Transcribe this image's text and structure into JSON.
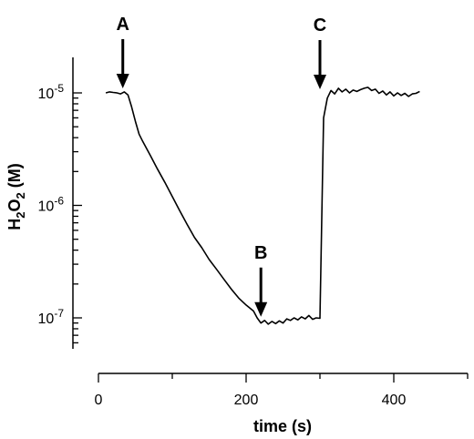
{
  "chart_data": {
    "type": "line",
    "xlabel": "time (s)",
    "ylabel": {
      "base": "H",
      "sub1": "2",
      "mid": "O",
      "sub2": "2",
      "unit": " (M)"
    },
    "xlim": [
      0,
      500
    ],
    "ylim": [
      5e-08,
      1.5e-05
    ],
    "yscale": "log",
    "x_ticks": [
      {
        "value": 0,
        "label": "0"
      },
      {
        "value": 200,
        "label": "200"
      },
      {
        "value": 400,
        "label": "400"
      }
    ],
    "y_ticks": [
      {
        "value": 1e-07,
        "base": "10",
        "exp": "-7"
      },
      {
        "value": 1e-06,
        "base": "10",
        "exp": "-6"
      },
      {
        "value": 1e-05,
        "base": "10",
        "exp": "-5"
      }
    ],
    "series": [
      {
        "color": "#000000",
        "points": [
          [
            10,
            1e-05
          ],
          [
            15,
            1.02e-05
          ],
          [
            20,
            1.01e-05
          ],
          [
            25,
            1e-05
          ],
          [
            30,
            9.8e-06
          ],
          [
            35,
            1.02e-05
          ],
          [
            40,
            9.6e-06
          ],
          [
            45,
            7.5e-06
          ],
          [
            50,
            5.6e-06
          ],
          [
            55,
            4.3e-06
          ],
          [
            60,
            3.7e-06
          ],
          [
            70,
            2.8e-06
          ],
          [
            80,
            2.1e-06
          ],
          [
            90,
            1.6e-06
          ],
          [
            100,
            1.2e-06
          ],
          [
            110,
            9e-07
          ],
          [
            120,
            6.8e-07
          ],
          [
            130,
            5.2e-07
          ],
          [
            140,
            4.2e-07
          ],
          [
            150,
            3.3e-07
          ],
          [
            160,
            2.7e-07
          ],
          [
            170,
            2.2e-07
          ],
          [
            180,
            1.8e-07
          ],
          [
            190,
            1.5e-07
          ],
          [
            200,
            1.3e-07
          ],
          [
            210,
            1.15e-07
          ],
          [
            215,
            1e-07
          ],
          [
            220,
            9e-08
          ],
          [
            225,
            9.5e-08
          ],
          [
            230,
            8.8e-08
          ],
          [
            235,
            9.3e-08
          ],
          [
            240,
            8.9e-08
          ],
          [
            245,
            9.4e-08
          ],
          [
            250,
            9e-08
          ],
          [
            255,
            9.8e-08
          ],
          [
            260,
            9.5e-08
          ],
          [
            265,
            1e-07
          ],
          [
            270,
            9.6e-08
          ],
          [
            275,
            1.02e-07
          ],
          [
            280,
            9.8e-08
          ],
          [
            285,
            1.05e-07
          ],
          [
            290,
            9.7e-08
          ],
          [
            295,
            1e-07
          ],
          [
            300,
            9.9e-08
          ],
          [
            305,
            6e-06
          ],
          [
            310,
            9e-06
          ],
          [
            315,
            1.05e-05
          ],
          [
            320,
            9.8e-06
          ],
          [
            325,
            1.1e-05
          ],
          [
            330,
            1.02e-05
          ],
          [
            335,
            1.08e-05
          ],
          [
            340,
            1e-05
          ],
          [
            345,
            1.06e-05
          ],
          [
            350,
            1.03e-05
          ],
          [
            355,
            1.07e-05
          ],
          [
            360,
            1.1e-05
          ],
          [
            365,
            1.12e-05
          ],
          [
            370,
            1.05e-05
          ],
          [
            375,
            1.08e-05
          ],
          [
            380,
            9.9e-06
          ],
          [
            385,
            1.04e-05
          ],
          [
            390,
            9.6e-06
          ],
          [
            395,
            1.02e-05
          ],
          [
            400,
            9.4e-06
          ],
          [
            405,
            1e-05
          ],
          [
            410,
            9.5e-06
          ],
          [
            415,
            9.9e-06
          ],
          [
            420,
            9.3e-06
          ],
          [
            425,
            9.8e-06
          ],
          [
            430,
            9.9e-06
          ],
          [
            435,
            1.03e-05
          ]
        ]
      }
    ],
    "annotations": [
      {
        "label": "A",
        "x": 33,
        "y": 1.02e-05
      },
      {
        "label": "B",
        "x": 220,
        "y": 9.5e-08
      },
      {
        "label": "C",
        "x": 300,
        "y": 1e-05
      }
    ]
  }
}
